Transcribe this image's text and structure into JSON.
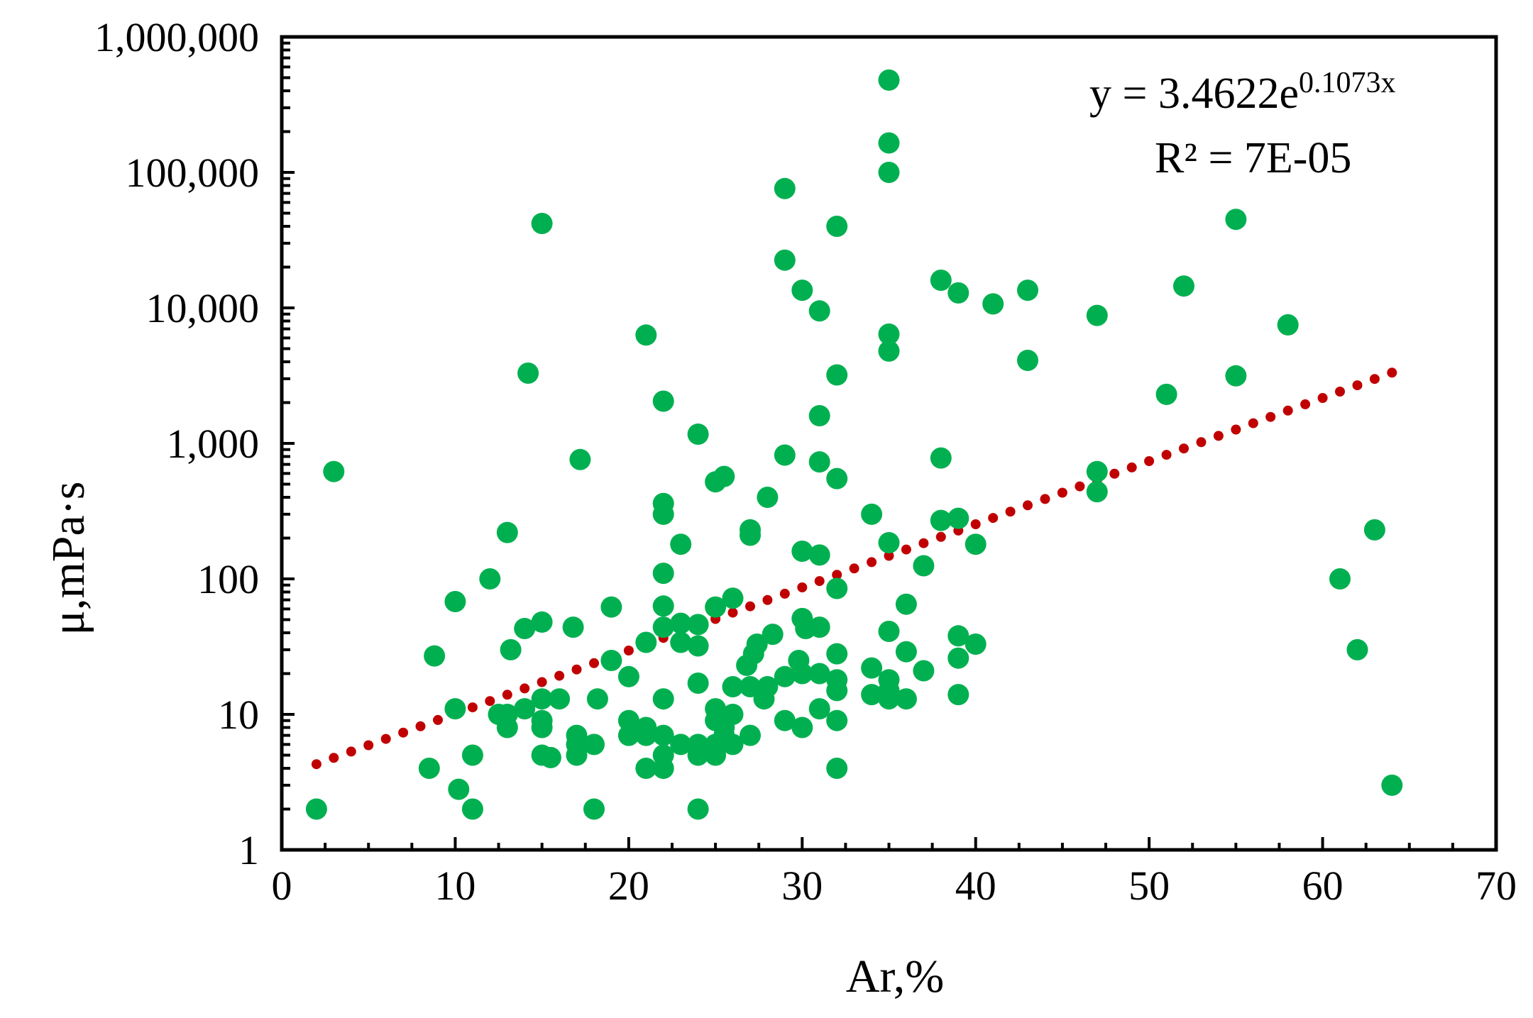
{
  "chart_data": {
    "type": "scatter",
    "title": "",
    "xlabel": "Ar,%",
    "ylabel": "μ,mPa·s",
    "xlim": [
      0,
      70
    ],
    "ylim": [
      1,
      1000000
    ],
    "yscale": "log",
    "grid": false,
    "x_ticks": [
      0,
      10,
      20,
      30,
      40,
      50,
      60,
      70
    ],
    "x_tick_labels": [
      "0",
      "10",
      "20",
      "30",
      "40",
      "50",
      "60",
      "70"
    ],
    "y_ticks": [
      1,
      10,
      100,
      1000,
      10000,
      100000,
      1000000
    ],
    "y_tick_labels": [
      "1",
      "10",
      "100",
      "1,000",
      "10,000",
      "100,000",
      "1,000,000"
    ],
    "colors": {
      "points": "#00b050",
      "trendline": "#c00000",
      "axes": "#000000"
    },
    "trendline": {
      "type": "exponential",
      "a": 3.4622,
      "b": 0.1073,
      "x_range": [
        2,
        64
      ],
      "equation_prefix": "y = 3.4622e",
      "equation_exponent": "0.1073x",
      "r2_label": "R² = 7E-05"
    },
    "series": [
      {
        "name": "μ",
        "points": [
          [
            2,
            2
          ],
          [
            3,
            620
          ],
          [
            8.5,
            4
          ],
          [
            8.8,
            27
          ],
          [
            10,
            68
          ],
          [
            10,
            11
          ],
          [
            10.2,
            2.8
          ],
          [
            11,
            5
          ],
          [
            11,
            2
          ],
          [
            12,
            100
          ],
          [
            12.5,
            10
          ],
          [
            13,
            220
          ],
          [
            13,
            10
          ],
          [
            13,
            8
          ],
          [
            13.2,
            30
          ],
          [
            14,
            43
          ],
          [
            14,
            11
          ],
          [
            14.2,
            3300
          ],
          [
            15,
            48
          ],
          [
            15,
            13
          ],
          [
            15,
            9
          ],
          [
            15,
            8
          ],
          [
            15,
            5
          ],
          [
            15,
            42000
          ],
          [
            15.5,
            4.8
          ],
          [
            16,
            13
          ],
          [
            16.8,
            44
          ],
          [
            17,
            7
          ],
          [
            17,
            6
          ],
          [
            17,
            5
          ],
          [
            17.2,
            760
          ],
          [
            18,
            6
          ],
          [
            18.2,
            13
          ],
          [
            18,
            2
          ],
          [
            19,
            62
          ],
          [
            19,
            25
          ],
          [
            20,
            19
          ],
          [
            20,
            9
          ],
          [
            20,
            7
          ],
          [
            21,
            6300
          ],
          [
            21,
            34
          ],
          [
            21,
            8
          ],
          [
            21,
            7
          ],
          [
            21,
            4
          ],
          [
            22,
            2050
          ],
          [
            22,
            360
          ],
          [
            22,
            300
          ],
          [
            22,
            110
          ],
          [
            22,
            63
          ],
          [
            22,
            44
          ],
          [
            22,
            13
          ],
          [
            22,
            7
          ],
          [
            22,
            5
          ],
          [
            22,
            4
          ],
          [
            23,
            180
          ],
          [
            23,
            47
          ],
          [
            23,
            34
          ],
          [
            23,
            6
          ],
          [
            24,
            1170
          ],
          [
            24,
            46
          ],
          [
            24,
            32
          ],
          [
            24,
            17
          ],
          [
            24,
            6
          ],
          [
            24,
            5
          ],
          [
            24,
            2
          ],
          [
            25,
            520
          ],
          [
            25,
            62
          ],
          [
            25,
            11
          ],
          [
            25,
            9
          ],
          [
            25,
            6
          ],
          [
            25,
            5
          ],
          [
            25.5,
            570
          ],
          [
            25.5,
            8
          ],
          [
            25.5,
            7
          ],
          [
            26,
            72
          ],
          [
            26,
            16
          ],
          [
            26,
            10
          ],
          [
            26,
            6
          ],
          [
            27,
            230
          ],
          [
            27,
            210
          ],
          [
            27,
            7
          ],
          [
            26.8,
            23
          ],
          [
            27,
            16
          ],
          [
            27.2,
            28
          ],
          [
            27.4,
            33
          ],
          [
            27.8,
            13
          ],
          [
            28,
            400
          ],
          [
            28,
            16
          ],
          [
            28.3,
            39
          ],
          [
            29,
            76000
          ],
          [
            29,
            22500
          ],
          [
            29,
            820
          ],
          [
            29,
            19
          ],
          [
            29,
            9
          ],
          [
            29.8,
            25
          ],
          [
            30,
            13500
          ],
          [
            30,
            160
          ],
          [
            30,
            51
          ],
          [
            30,
            20
          ],
          [
            30,
            8
          ],
          [
            30.2,
            43
          ],
          [
            31,
            9500
          ],
          [
            31,
            1600
          ],
          [
            31,
            730
          ],
          [
            31,
            150
          ],
          [
            31,
            44
          ],
          [
            31,
            20
          ],
          [
            31,
            11
          ],
          [
            32,
            40000
          ],
          [
            32,
            3200
          ],
          [
            32,
            550
          ],
          [
            32,
            85
          ],
          [
            32,
            28
          ],
          [
            32,
            18
          ],
          [
            32,
            15
          ],
          [
            32,
            9
          ],
          [
            32,
            4
          ],
          [
            34,
            300
          ],
          [
            34,
            22
          ],
          [
            34,
            14
          ],
          [
            35,
            480000
          ],
          [
            35,
            165000
          ],
          [
            35,
            100000
          ],
          [
            35,
            6400
          ],
          [
            35,
            4800
          ],
          [
            35,
            185
          ],
          [
            35,
            41
          ],
          [
            35,
            18
          ],
          [
            35,
            15
          ],
          [
            35,
            13
          ],
          [
            36,
            65
          ],
          [
            36,
            29
          ],
          [
            36,
            13
          ],
          [
            37,
            125
          ],
          [
            37,
            21
          ],
          [
            38,
            16000
          ],
          [
            38,
            780
          ],
          [
            38,
            270
          ],
          [
            39,
            12900
          ],
          [
            39,
            280
          ],
          [
            39,
            38
          ],
          [
            39,
            26
          ],
          [
            39,
            14
          ],
          [
            40,
            180
          ],
          [
            40,
            33
          ],
          [
            41,
            10700
          ],
          [
            43,
            13500
          ],
          [
            43,
            4100
          ],
          [
            47,
            8800
          ],
          [
            47,
            620
          ],
          [
            47,
            440
          ],
          [
            51,
            2300
          ],
          [
            52,
            14500
          ],
          [
            55,
            45000
          ],
          [
            55,
            3150
          ],
          [
            58,
            7500
          ],
          [
            61,
            100
          ],
          [
            62,
            30
          ],
          [
            63,
            230
          ],
          [
            64,
            3
          ]
        ]
      }
    ]
  }
}
